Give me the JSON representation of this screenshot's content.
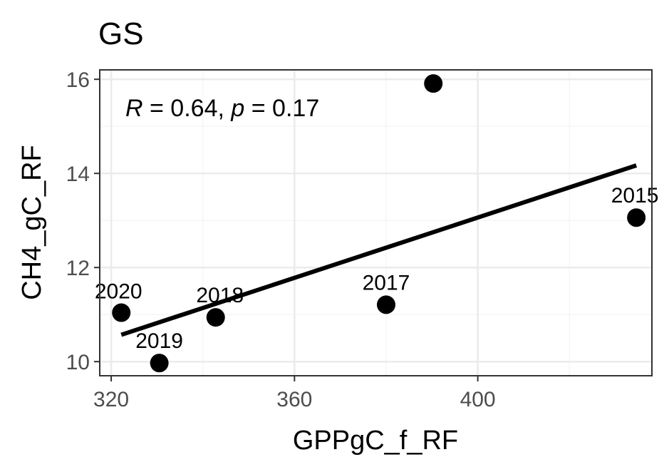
{
  "chart_data": {
    "type": "scatter",
    "title": "GS",
    "xlabel": "GPPgC_f_RF",
    "ylabel": "CH4_gC_RF",
    "xlim": [
      317.5,
      438
    ],
    "ylim": [
      9.7,
      16.2
    ],
    "x_ticks": [
      320,
      360,
      400
    ],
    "y_ticks": [
      10,
      12,
      14,
      16
    ],
    "grid": true,
    "annotation": {
      "r_symbol": "R",
      "r_rest": " = 0.64, ",
      "p_symbol": "p",
      "p_rest": " = 0.17"
    },
    "points": [
      {
        "x": 322.2,
        "y": 11.04,
        "label": "2020"
      },
      {
        "x": 330.5,
        "y": 9.97,
        "label": "2019"
      },
      {
        "x": 342.8,
        "y": 10.94,
        "label": "2018"
      },
      {
        "x": 380.0,
        "y": 11.21,
        "label": "2017"
      },
      {
        "x": 390.3,
        "y": 15.91,
        "label": ""
      },
      {
        "x": 434.6,
        "y": 13.06,
        "label": "2015"
      }
    ],
    "regression": {
      "x": [
        322.2,
        434.6
      ],
      "y": [
        10.57,
        14.17
      ]
    },
    "colors": {
      "points": "#000000",
      "line": "#000000",
      "grid": "#ebebeb",
      "border": "#333333"
    }
  }
}
